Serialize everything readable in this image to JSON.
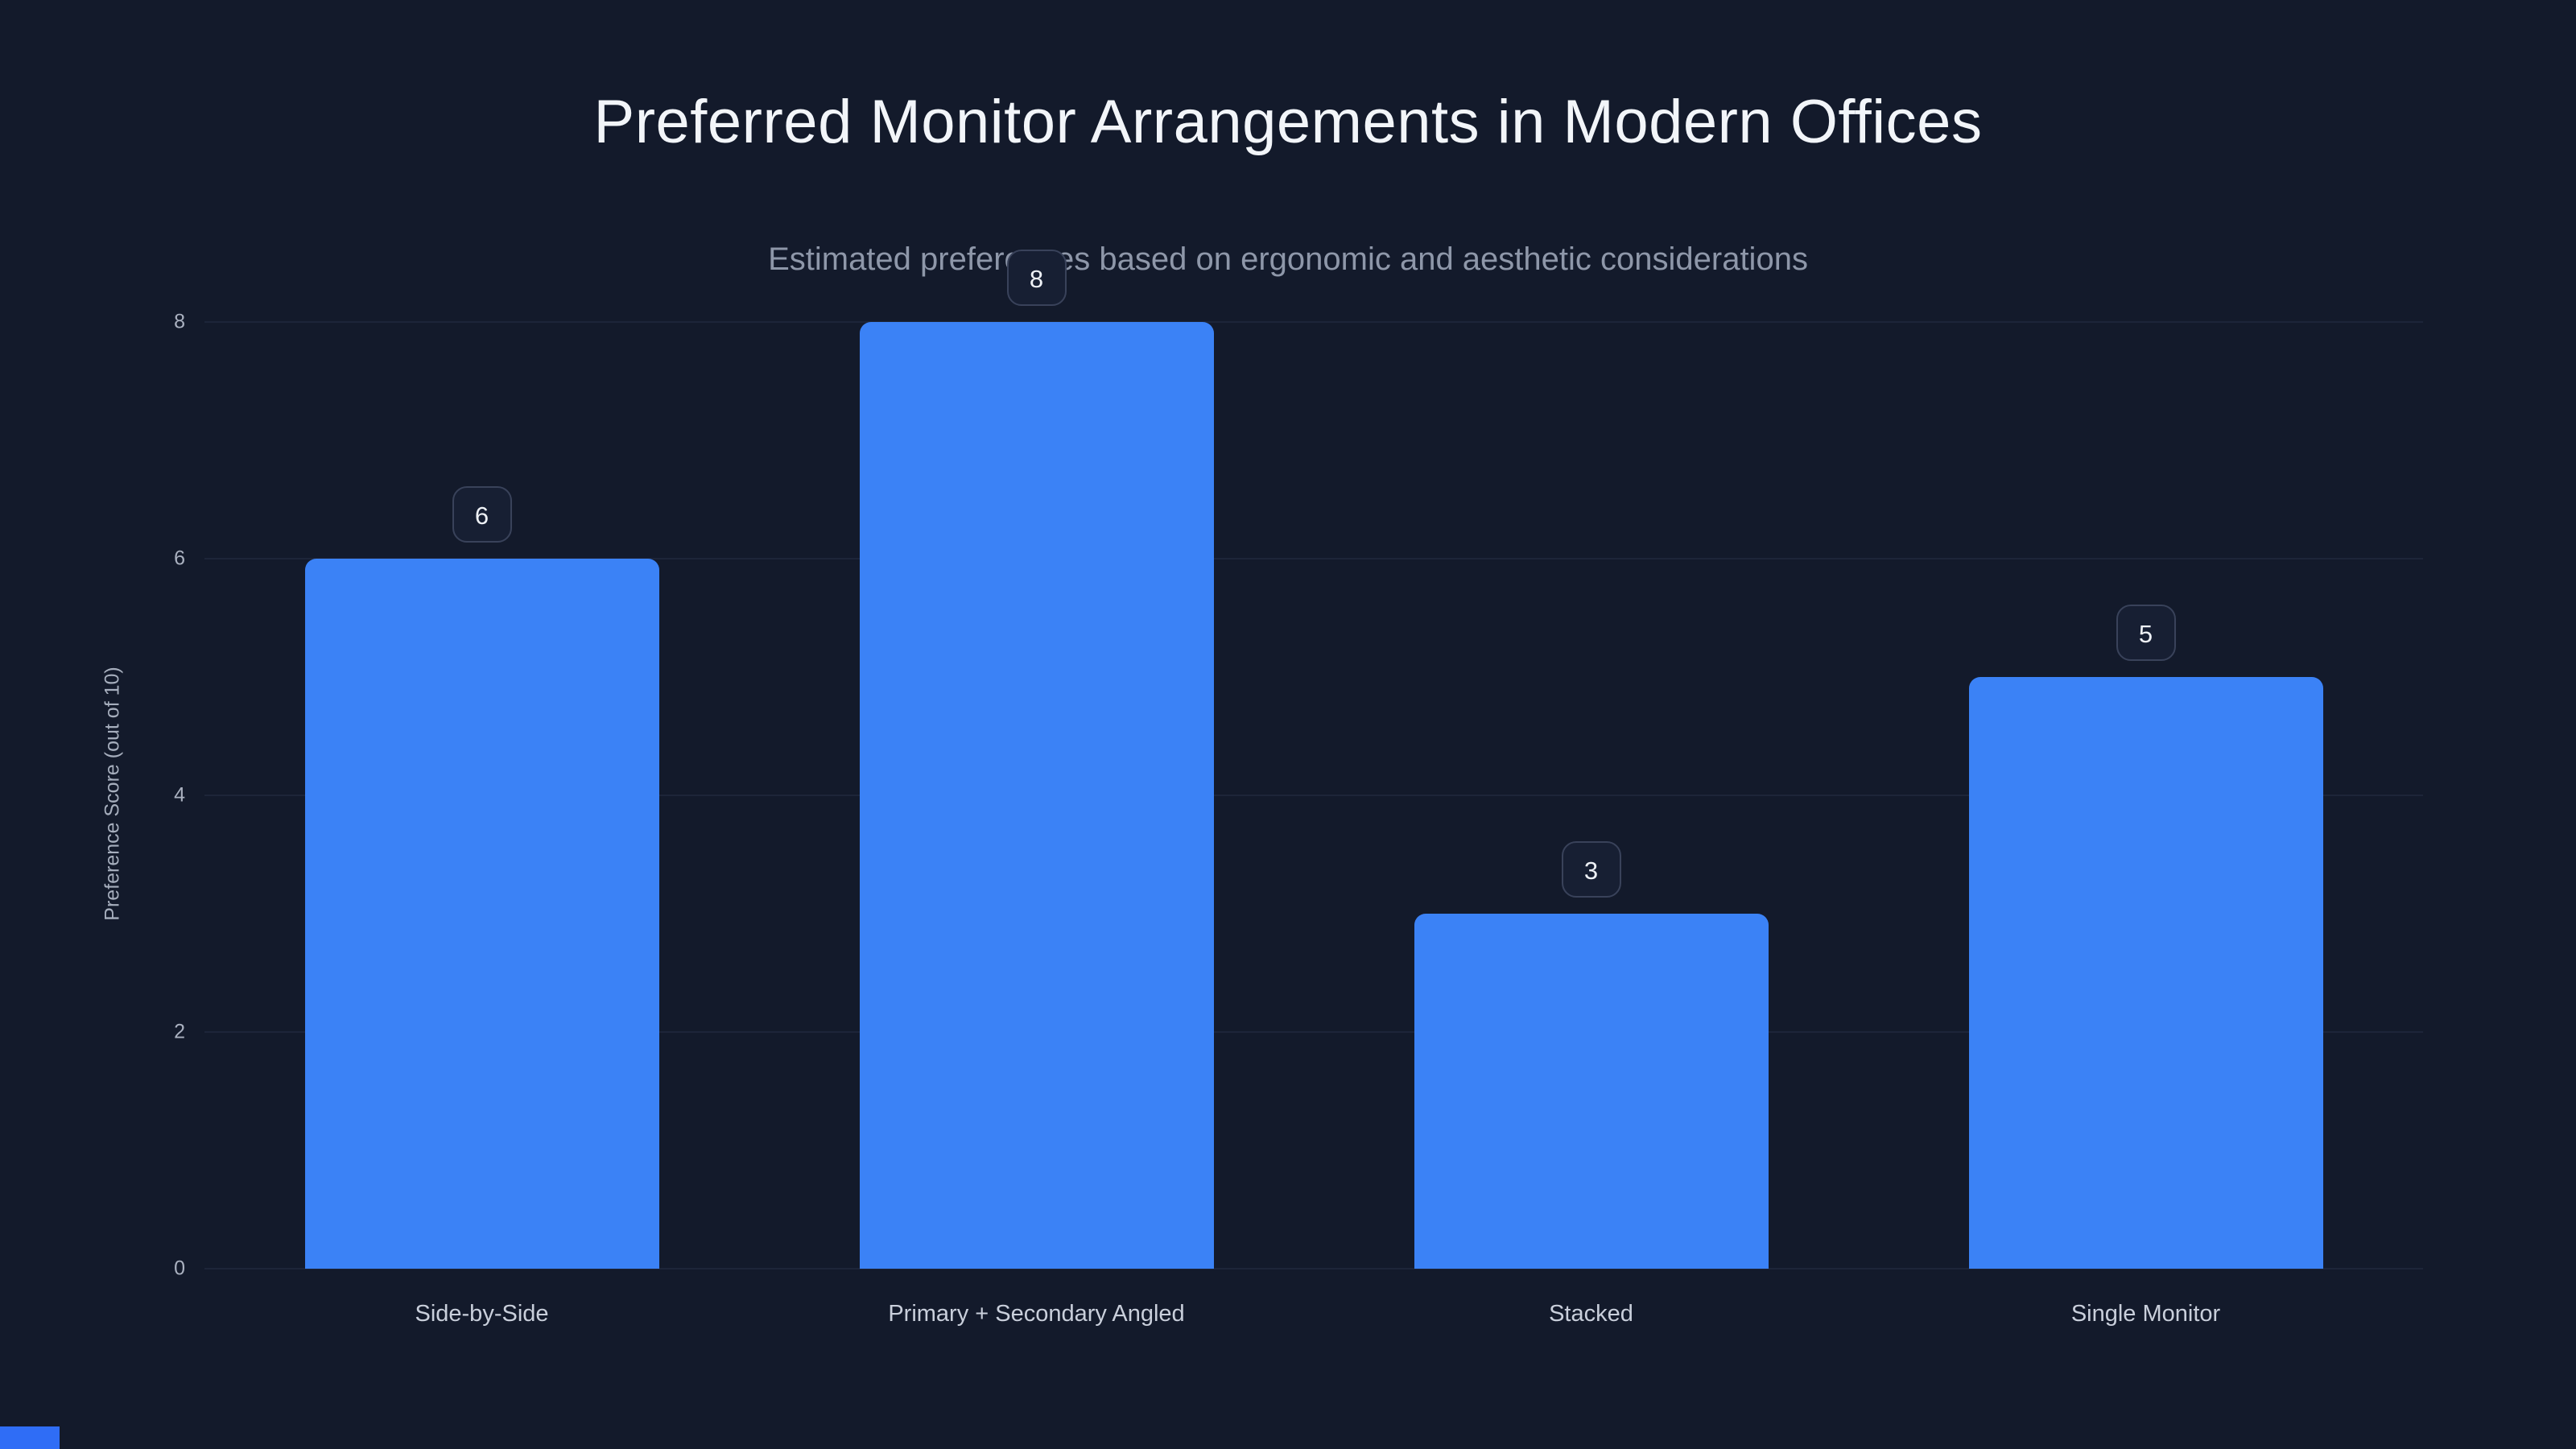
{
  "page": {
    "title": "Preferred Monitor Arrangements in Modern Offices",
    "subtitle": "Estimated preferences based on ergonomic and aesthetic considerations"
  },
  "chart_data": {
    "type": "bar",
    "title": "Preferred Monitor Arrangements in Modern Offices",
    "subtitle": "Estimated preferences based on ergonomic and aesthetic considerations",
    "categories": [
      "Side-by-Side",
      "Primary + Secondary Angled",
      "Stacked",
      "Single Monitor"
    ],
    "values": [
      6,
      8,
      3,
      5
    ],
    "value_labels": [
      "6",
      "8",
      "3",
      "5"
    ],
    "xlabel": "",
    "ylabel": "Preference Score (out of 10)",
    "ylim": [
      0,
      8
    ],
    "yticks": [
      0,
      2,
      4,
      6,
      8
    ],
    "grid": true,
    "legend": "none"
  },
  "colors": {
    "background": "#131a2b",
    "bar": "#3b82f6",
    "gridline": "#1d2539",
    "title_text": "#f2f5f9",
    "subtitle_text": "#8e97a9",
    "axis_text": "#aab1c0",
    "badge_background": "#171f33",
    "badge_border": "#39425a",
    "bottom_accent": "#2f6df6"
  }
}
